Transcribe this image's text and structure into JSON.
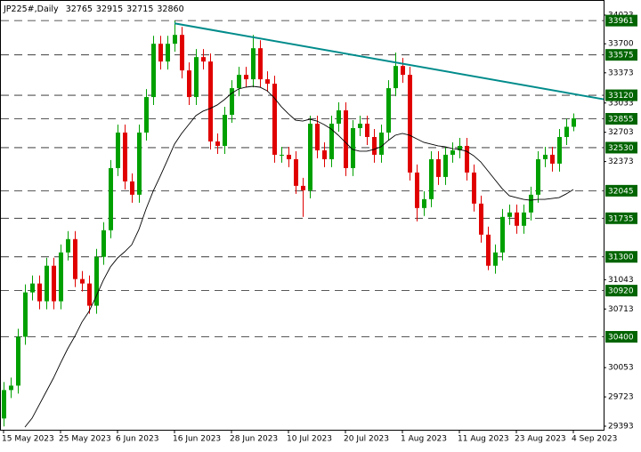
{
  "chart_data": {
    "type": "candlestick",
    "title": "JP225#,Daily",
    "categories": [
      "15 May 2023",
      null,
      null,
      null,
      null,
      null,
      null,
      null,
      "25 May 2023",
      null,
      null,
      null,
      null,
      null,
      null,
      null,
      "6 Jun 2023",
      null,
      null,
      null,
      null,
      null,
      null,
      null,
      "16 Jun 2023",
      null,
      null,
      null,
      null,
      null,
      null,
      null,
      "28 Jun 2023",
      null,
      null,
      null,
      null,
      null,
      null,
      null,
      "10 Jul 2023",
      null,
      null,
      null,
      null,
      null,
      null,
      null,
      "20 Jul 2023",
      null,
      null,
      null,
      null,
      null,
      null,
      null,
      "1 Aug 2023",
      null,
      null,
      null,
      null,
      null,
      null,
      null,
      "11 Aug 2023",
      null,
      null,
      null,
      null,
      null,
      null,
      null,
      "23 Aug 2023",
      null,
      null,
      null,
      null,
      null,
      null,
      null,
      "4 Sep 2023"
    ],
    "open": [
      29480,
      29800,
      29850,
      30400,
      30900,
      31000,
      30800,
      31200,
      30800,
      31350,
      31500,
      31050,
      31000,
      30750,
      31300,
      31600,
      32300,
      32700,
      32150,
      32000,
      32700,
      33100,
      33700,
      33500,
      33700,
      33800,
      33400,
      33100,
      33550,
      33500,
      32600,
      32550,
      32900,
      33200,
      33350,
      33300,
      33650,
      33300,
      33250,
      32450,
      32450,
      32400,
      32100,
      32050,
      32800,
      32500,
      32400,
      32800,
      32950,
      32300,
      32750,
      32800,
      32650,
      32450,
      32700,
      33200,
      33450,
      33350,
      32250,
      31850,
      31950,
      32400,
      32200,
      32450,
      32500,
      32550,
      32250,
      31900,
      31550,
      31200,
      31350,
      31750,
      31800,
      31650,
      31800,
      32000,
      32400,
      32450,
      32350,
      32650,
      32765
    ],
    "high": [
      29890,
      29940,
      30490,
      30990,
      31090,
      31090,
      31290,
      31290,
      31440,
      31590,
      31590,
      31140,
      31090,
      31390,
      31690,
      32390,
      32790,
      32790,
      32240,
      32790,
      33190,
      33790,
      33790,
      33790,
      33960,
      33890,
      33490,
      33640,
      33640,
      33590,
      32690,
      32990,
      33290,
      33440,
      33440,
      33800,
      33740,
      33390,
      33340,
      32540,
      32540,
      32490,
      32190,
      32890,
      32890,
      32590,
      32890,
      33040,
      33040,
      32840,
      32890,
      32890,
      32740,
      32790,
      33290,
      33600,
      33540,
      33440,
      32340,
      32040,
      32490,
      32490,
      32540,
      32590,
      32640,
      32640,
      32340,
      31990,
      31640,
      31440,
      31840,
      31890,
      31890,
      31890,
      32090,
      32490,
      32540,
      32540,
      32740,
      32855,
      32915
    ],
    "low": [
      29390,
      29710,
      29760,
      30310,
      30810,
      30710,
      30710,
      30710,
      30710,
      31260,
      30960,
      30910,
      30660,
      30660,
      31210,
      31510,
      32210,
      32060,
      31910,
      31910,
      32610,
      33010,
      33410,
      33410,
      33610,
      33310,
      33010,
      33010,
      33410,
      32510,
      32460,
      32460,
      32810,
      33110,
      33210,
      33210,
      33210,
      33160,
      32360,
      32360,
      32310,
      32010,
      31750,
      31960,
      32410,
      32310,
      32310,
      32710,
      32210,
      32210,
      32660,
      32560,
      32360,
      32360,
      32610,
      33110,
      33260,
      32160,
      31700,
      31760,
      31860,
      32110,
      32110,
      32360,
      32410,
      32160,
      31810,
      31460,
      31150,
      31110,
      31260,
      31660,
      31560,
      31560,
      31710,
      31910,
      32310,
      32260,
      32260,
      32560,
      32715
    ],
    "close": [
      29800,
      29850,
      30400,
      30900,
      31000,
      30800,
      31200,
      30800,
      31350,
      31500,
      31050,
      31000,
      30750,
      31300,
      31600,
      32300,
      32700,
      32150,
      32000,
      32700,
      33100,
      33700,
      33500,
      33700,
      33800,
      33400,
      33100,
      33550,
      33500,
      32600,
      32550,
      32900,
      33200,
      33350,
      33300,
      33650,
      33300,
      33250,
      32450,
      32450,
      32400,
      32100,
      32050,
      32800,
      32500,
      32400,
      32800,
      32950,
      32300,
      32750,
      32800,
      32650,
      32450,
      32700,
      33200,
      33450,
      33350,
      32250,
      31850,
      31950,
      32400,
      32200,
      32450,
      32500,
      32550,
      32250,
      31900,
      31550,
      31200,
      31350,
      31750,
      31800,
      31650,
      31800,
      32000,
      32400,
      32450,
      32350,
      32650,
      32765,
      32860
    ],
    "up_color": "#00a000",
    "down_color": "#e00000",
    "moving_average": {
      "color": "#000000",
      "values": [
        null,
        null,
        null,
        29383,
        29483,
        29633,
        29784,
        29934,
        30104,
        30265,
        30405,
        30565,
        30686,
        30856,
        31036,
        31187,
        31287,
        31357,
        31437,
        31608,
        31838,
        32039,
        32209,
        32389,
        32570,
        32690,
        32790,
        32891,
        32941,
        32971,
        33011,
        33071,
        33141,
        33191,
        33211,
        33221,
        33211,
        33171,
        33091,
        32991,
        32911,
        32840,
        32830,
        32850,
        32830,
        32790,
        32740,
        32670,
        32590,
        32510,
        32490,
        32490,
        32510,
        32540,
        32610,
        32670,
        32690,
        32670,
        32630,
        32590,
        32570,
        32550,
        32540,
        32520,
        32510,
        32490,
        32440,
        32369,
        32269,
        32169,
        32069,
        31989,
        31968,
        31948,
        31938,
        31948,
        31948,
        31958,
        31968,
        32009,
        32059
      ]
    },
    "levels": [
      33961,
      33575,
      33120,
      32855,
      32530,
      32045,
      31735,
      31300,
      30920,
      30400
    ],
    "level_color": "#006400",
    "trendline": {
      "x": [
        24,
        84.25
      ],
      "values": [
        33930,
        33075
      ],
      "color": "#008b8b"
    },
    "ylim": [
      29353,
      34193
    ],
    "yticks": [
      34023,
      33700,
      33373,
      33033,
      32703,
      32373,
      31043,
      30713,
      30053,
      29723,
      29393
    ]
  }
}
